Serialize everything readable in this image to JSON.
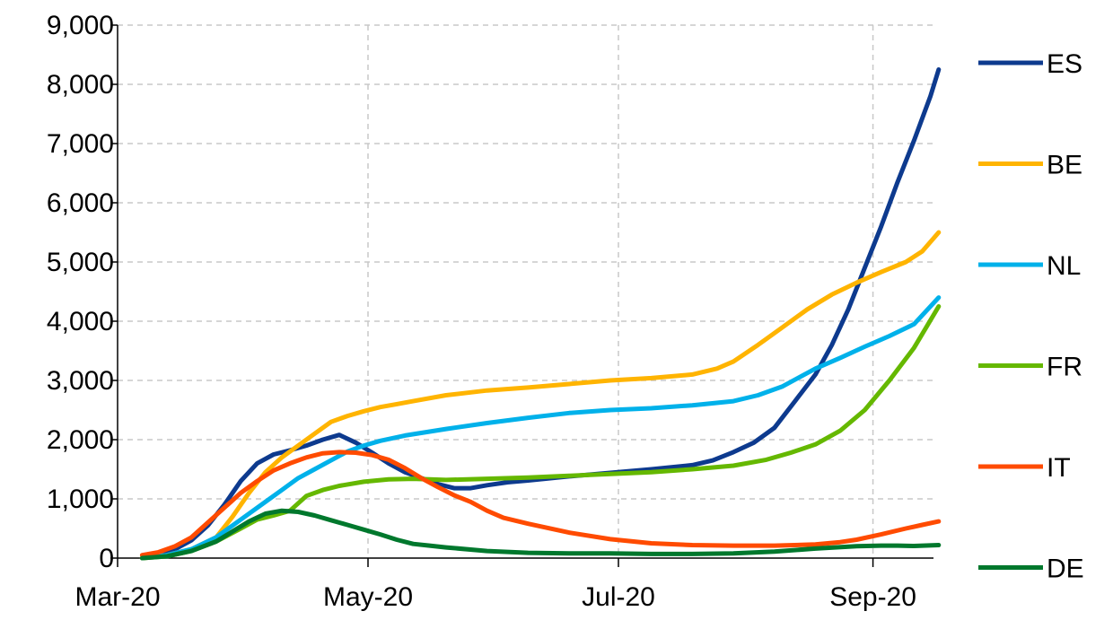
{
  "chart_data": {
    "type": "line",
    "title": "",
    "xlabel": "",
    "ylabel": "",
    "ylim": [
      0,
      9000
    ],
    "y_ticks": [
      0,
      1000,
      2000,
      3000,
      4000,
      5000,
      6000,
      7000,
      8000,
      9000
    ],
    "y_tick_labels": [
      "0",
      "1,000",
      "2,000",
      "3,000",
      "4,000",
      "5,000",
      "6,000",
      "7,000",
      "8,000",
      "9,000"
    ],
    "x_ticks": [
      {
        "label": "Mar-20",
        "day": 0
      },
      {
        "label": "May-20",
        "day": 61
      },
      {
        "label": "Jul-20",
        "day": 122
      },
      {
        "label": "Sep-20",
        "day": 184
      }
    ],
    "x_range_days": [
      0,
      202
    ],
    "grid": {
      "horizontal": true,
      "vertical": true,
      "style": "dashed"
    },
    "legend_placement": "right",
    "series": [
      {
        "name": "ES",
        "color": "#0d3a8e",
        "points": [
          [
            6,
            0
          ],
          [
            10,
            50
          ],
          [
            14,
            150
          ],
          [
            18,
            300
          ],
          [
            22,
            550
          ],
          [
            26,
            900
          ],
          [
            30,
            1300
          ],
          [
            34,
            1600
          ],
          [
            38,
            1750
          ],
          [
            42,
            1820
          ],
          [
            46,
            1900
          ],
          [
            50,
            2000
          ],
          [
            54,
            2080
          ],
          [
            58,
            1950
          ],
          [
            62,
            1780
          ],
          [
            66,
            1600
          ],
          [
            70,
            1450
          ],
          [
            74,
            1350
          ],
          [
            78,
            1250
          ],
          [
            82,
            1180
          ],
          [
            86,
            1180
          ],
          [
            90,
            1230
          ],
          [
            95,
            1280
          ],
          [
            100,
            1310
          ],
          [
            110,
            1380
          ],
          [
            120,
            1440
          ],
          [
            130,
            1500
          ],
          [
            140,
            1570
          ],
          [
            145,
            1650
          ],
          [
            150,
            1790
          ],
          [
            155,
            1950
          ],
          [
            160,
            2200
          ],
          [
            165,
            2650
          ],
          [
            170,
            3100
          ],
          [
            174,
            3600
          ],
          [
            178,
            4200
          ],
          [
            182,
            4900
          ],
          [
            186,
            5600
          ],
          [
            190,
            6350
          ],
          [
            194,
            7050
          ],
          [
            198,
            7800
          ],
          [
            200,
            8250
          ]
        ]
      },
      {
        "name": "BE",
        "color": "#ffb400",
        "points": [
          [
            6,
            0
          ],
          [
            12,
            50
          ],
          [
            18,
            150
          ],
          [
            24,
            350
          ],
          [
            28,
            700
          ],
          [
            32,
            1100
          ],
          [
            36,
            1450
          ],
          [
            40,
            1700
          ],
          [
            44,
            1900
          ],
          [
            48,
            2100
          ],
          [
            52,
            2300
          ],
          [
            56,
            2400
          ],
          [
            60,
            2480
          ],
          [
            64,
            2550
          ],
          [
            68,
            2600
          ],
          [
            72,
            2650
          ],
          [
            80,
            2750
          ],
          [
            90,
            2830
          ],
          [
            100,
            2880
          ],
          [
            110,
            2940
          ],
          [
            120,
            3000
          ],
          [
            130,
            3040
          ],
          [
            140,
            3100
          ],
          [
            146,
            3200
          ],
          [
            150,
            3320
          ],
          [
            156,
            3600
          ],
          [
            162,
            3900
          ],
          [
            168,
            4200
          ],
          [
            174,
            4450
          ],
          [
            180,
            4650
          ],
          [
            186,
            4830
          ],
          [
            192,
            5000
          ],
          [
            196,
            5180
          ],
          [
            200,
            5500
          ]
        ]
      },
      {
        "name": "NL",
        "color": "#00b1ea",
        "points": [
          [
            6,
            0
          ],
          [
            12,
            50
          ],
          [
            18,
            150
          ],
          [
            24,
            350
          ],
          [
            30,
            650
          ],
          [
            36,
            950
          ],
          [
            40,
            1150
          ],
          [
            44,
            1350
          ],
          [
            48,
            1500
          ],
          [
            52,
            1650
          ],
          [
            56,
            1800
          ],
          [
            60,
            1900
          ],
          [
            64,
            1980
          ],
          [
            70,
            2070
          ],
          [
            80,
            2180
          ],
          [
            90,
            2280
          ],
          [
            100,
            2370
          ],
          [
            110,
            2450
          ],
          [
            120,
            2500
          ],
          [
            130,
            2530
          ],
          [
            140,
            2580
          ],
          [
            150,
            2650
          ],
          [
            156,
            2750
          ],
          [
            162,
            2900
          ],
          [
            166,
            3050
          ],
          [
            170,
            3200
          ],
          [
            176,
            3380
          ],
          [
            182,
            3570
          ],
          [
            188,
            3750
          ],
          [
            194,
            3950
          ],
          [
            200,
            4400
          ]
        ]
      },
      {
        "name": "FR",
        "color": "#65b800",
        "points": [
          [
            6,
            0
          ],
          [
            12,
            30
          ],
          [
            18,
            120
          ],
          [
            24,
            280
          ],
          [
            30,
            500
          ],
          [
            34,
            650
          ],
          [
            38,
            720
          ],
          [
            42,
            800
          ],
          [
            46,
            1050
          ],
          [
            50,
            1150
          ],
          [
            54,
            1220
          ],
          [
            60,
            1290
          ],
          [
            66,
            1330
          ],
          [
            72,
            1340
          ],
          [
            80,
            1320
          ],
          [
            90,
            1340
          ],
          [
            100,
            1360
          ],
          [
            110,
            1390
          ],
          [
            120,
            1420
          ],
          [
            130,
            1450
          ],
          [
            140,
            1500
          ],
          [
            150,
            1560
          ],
          [
            158,
            1660
          ],
          [
            164,
            1780
          ],
          [
            170,
            1920
          ],
          [
            176,
            2150
          ],
          [
            182,
            2500
          ],
          [
            188,
            3000
          ],
          [
            194,
            3550
          ],
          [
            200,
            4250
          ]
        ]
      },
      {
        "name": "IT",
        "color": "#ff4b00",
        "points": [
          [
            6,
            50
          ],
          [
            10,
            100
          ],
          [
            14,
            200
          ],
          [
            18,
            350
          ],
          [
            22,
            600
          ],
          [
            26,
            850
          ],
          [
            30,
            1100
          ],
          [
            34,
            1300
          ],
          [
            38,
            1480
          ],
          [
            42,
            1600
          ],
          [
            46,
            1700
          ],
          [
            50,
            1770
          ],
          [
            54,
            1790
          ],
          [
            58,
            1780
          ],
          [
            62,
            1740
          ],
          [
            66,
            1660
          ],
          [
            70,
            1520
          ],
          [
            74,
            1350
          ],
          [
            78,
            1200
          ],
          [
            82,
            1060
          ],
          [
            86,
            950
          ],
          [
            90,
            800
          ],
          [
            94,
            680
          ],
          [
            100,
            580
          ],
          [
            110,
            430
          ],
          [
            120,
            320
          ],
          [
            130,
            250
          ],
          [
            140,
            220
          ],
          [
            150,
            210
          ],
          [
            160,
            210
          ],
          [
            170,
            230
          ],
          [
            176,
            270
          ],
          [
            180,
            310
          ],
          [
            186,
            400
          ],
          [
            192,
            500
          ],
          [
            196,
            560
          ],
          [
            200,
            620
          ]
        ]
      },
      {
        "name": "DE",
        "color": "#00782d",
        "points": [
          [
            6,
            0
          ],
          [
            12,
            30
          ],
          [
            18,
            120
          ],
          [
            24,
            280
          ],
          [
            28,
            450
          ],
          [
            32,
            620
          ],
          [
            36,
            750
          ],
          [
            40,
            800
          ],
          [
            44,
            780
          ],
          [
            48,
            720
          ],
          [
            52,
            640
          ],
          [
            56,
            560
          ],
          [
            60,
            480
          ],
          [
            64,
            400
          ],
          [
            68,
            310
          ],
          [
            72,
            240
          ],
          [
            76,
            210
          ],
          [
            80,
            180
          ],
          [
            90,
            120
          ],
          [
            100,
            90
          ],
          [
            110,
            80
          ],
          [
            120,
            80
          ],
          [
            130,
            70
          ],
          [
            140,
            70
          ],
          [
            150,
            80
          ],
          [
            160,
            110
          ],
          [
            170,
            160
          ],
          [
            180,
            200
          ],
          [
            186,
            210
          ],
          [
            190,
            210
          ],
          [
            194,
            205
          ],
          [
            200,
            220
          ]
        ]
      }
    ]
  }
}
